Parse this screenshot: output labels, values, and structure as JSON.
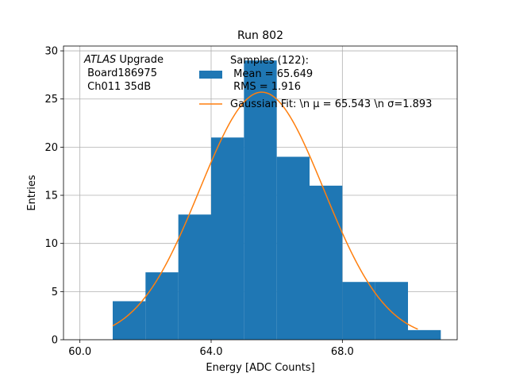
{
  "chart_data": {
    "type": "bar",
    "title": "Run 802",
    "xlabel": "Energy [ADC Counts]",
    "ylabel": "Entries",
    "xlim": [
      59.5,
      71.5
    ],
    "ylim": [
      0,
      30.5
    ],
    "grid": true,
    "xticks": [
      60,
      64,
      68
    ],
    "xtick_labels": [
      "60.0",
      "64.0",
      "68.0"
    ],
    "yticks": [
      0,
      5,
      10,
      15,
      20,
      25,
      30
    ],
    "ytick_labels": [
      "0",
      "5",
      "10",
      "15",
      "20",
      "25",
      "30"
    ],
    "bar_color": "#1f77b4",
    "line_color": "#ff7f0e",
    "bins": [
      {
        "start": 61,
        "end": 62,
        "count": 4
      },
      {
        "start": 62,
        "end": 63,
        "count": 7
      },
      {
        "start": 63,
        "end": 64,
        "count": 13
      },
      {
        "start": 64,
        "end": 65,
        "count": 21
      },
      {
        "start": 65,
        "end": 66,
        "count": 29
      },
      {
        "start": 66,
        "end": 67,
        "count": 19
      },
      {
        "start": 67,
        "end": 68,
        "count": 16
      },
      {
        "start": 68,
        "end": 69,
        "count": 6
      },
      {
        "start": 69,
        "end": 70,
        "count": 6
      },
      {
        "start": 70,
        "end": 71,
        "count": 1
      }
    ],
    "fit": {
      "mu": 65.543,
      "sigma": 1.893,
      "x_range": [
        61,
        70.3
      ]
    },
    "annotation": {
      "italic": "ATLAS",
      "line1_rest": " Upgrade",
      "line2": " Board186975",
      "line3": " Ch011 35dB"
    },
    "legend": {
      "placement": "top-right",
      "histogram_lines": [
        "Samples (122):",
        " Mean = 65.649",
        " RMS = 1.916"
      ],
      "fit_label": "Gaussian Fit: \\n μ = 65.543 \\n σ=1.893"
    }
  }
}
